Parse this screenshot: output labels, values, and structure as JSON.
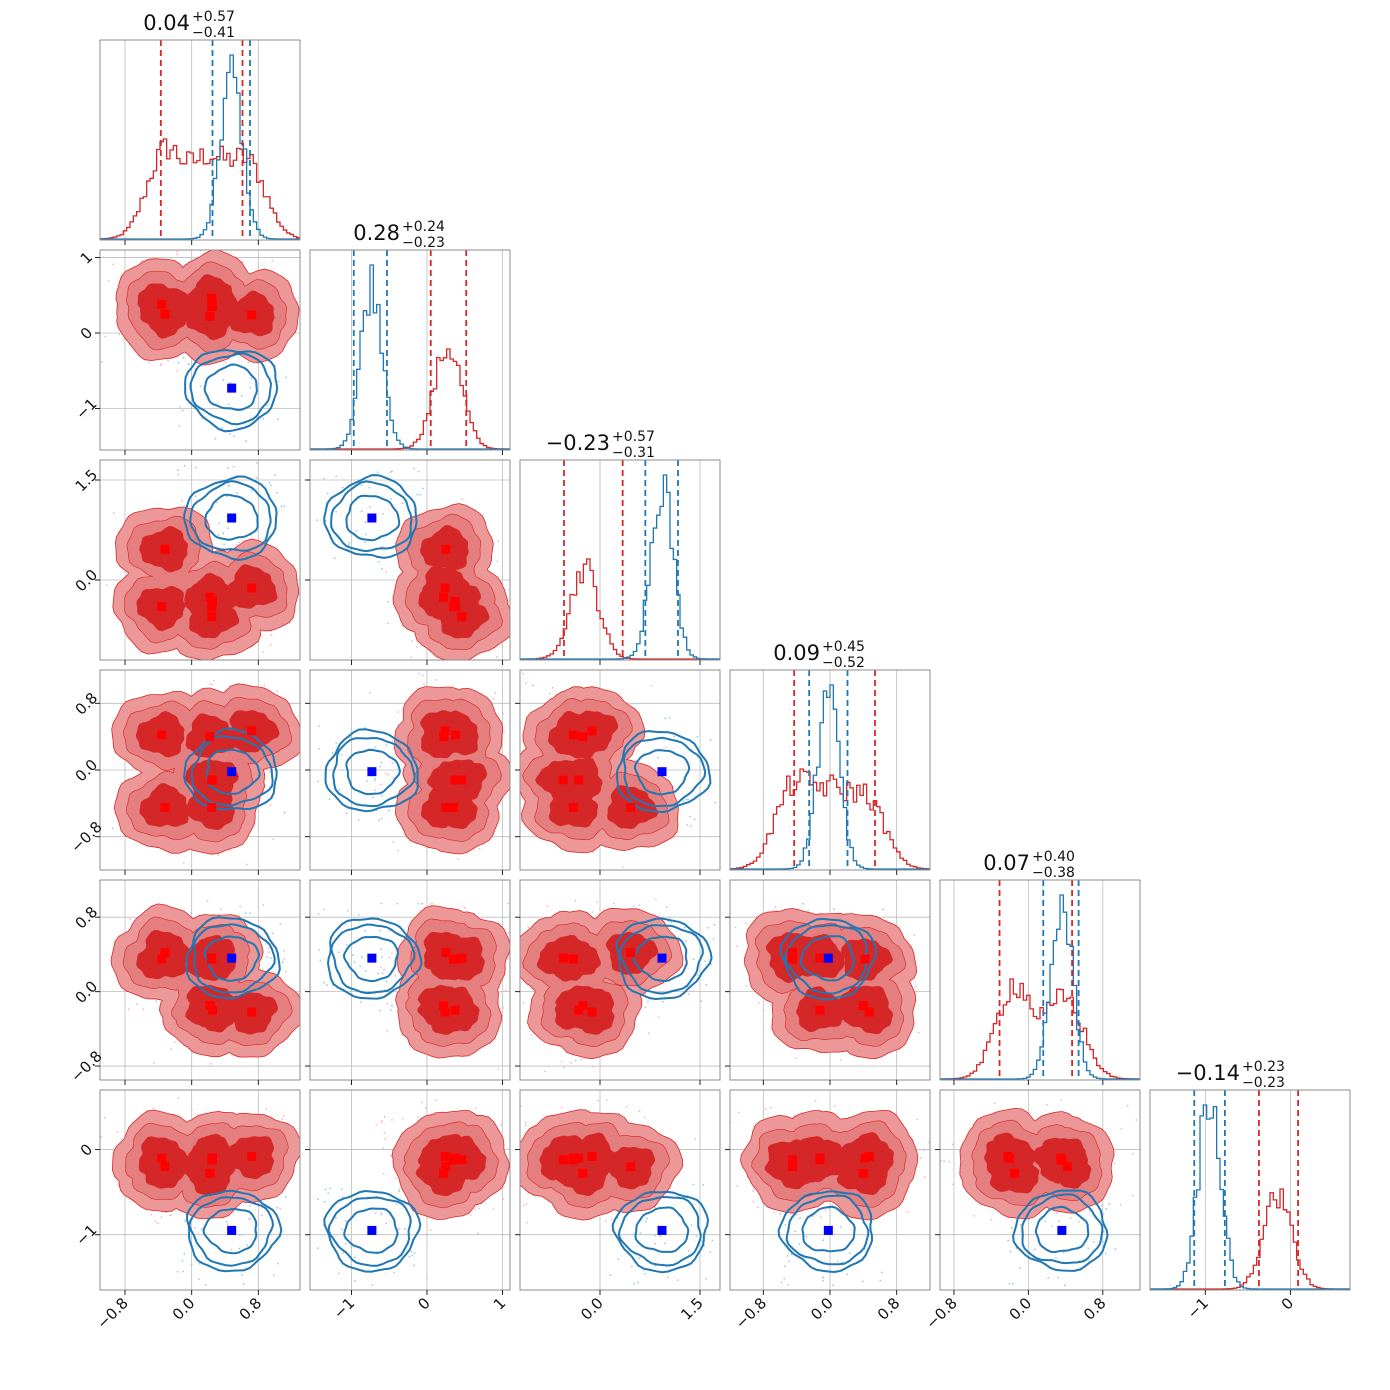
{
  "chart_data": {
    "type": "corner",
    "n_params": 6,
    "grid": true,
    "colors": {
      "red": "#d62728",
      "red_light": "#ec9898",
      "blue": "#1f77b4",
      "blue_marker": "#0000ff",
      "red_marker": "#ff0000"
    },
    "params": [
      {
        "range": [
          -1.1,
          1.3
        ],
        "ticks": [
          -0.8,
          0.0,
          0.8
        ],
        "tick_labels": [
          "−0.8",
          "0.0",
          "0.8"
        ],
        "title": {
          "median": "0.04",
          "plus": "+0.57",
          "minus": "−0.41"
        },
        "red_quantiles": [
          -0.37,
          0.61
        ],
        "blue_quantiles": [
          0.25,
          0.7
        ],
        "red_modes": [
          -0.32,
          0.2,
          0.68
        ],
        "blue_mode": 0.48
      },
      {
        "range": [
          -1.55,
          1.1
        ],
        "ticks": [
          -1,
          0,
          1
        ],
        "tick_labels": [
          "−1",
          "0",
          "1"
        ],
        "title": {
          "median": "0.28",
          "plus": "+0.24",
          "minus": "−0.23"
        },
        "red_quantiles": [
          0.05,
          0.52
        ],
        "blue_quantiles": [
          -0.97,
          -0.53
        ],
        "red_modes": [
          0.28
        ],
        "blue_mode": -0.73
      },
      {
        "range": [
          -1.2,
          1.8
        ],
        "ticks": [
          0.0,
          1.5
        ],
        "tick_labels": [
          "0.0",
          "1.5"
        ],
        "title": {
          "median": "−0.23",
          "plus": "+0.57",
          "minus": "−0.31"
        },
        "red_quantiles": [
          -0.54,
          0.34
        ],
        "blue_quantiles": [
          0.68,
          1.17
        ],
        "red_modes": [
          -0.23
        ],
        "blue_mode": 0.93
      },
      {
        "range": [
          -1.2,
          1.2
        ],
        "ticks": [
          -0.8,
          0.0,
          0.8
        ],
        "tick_labels": [
          "−0.8",
          "0.0",
          "0.8"
        ],
        "title": {
          "median": "0.09",
          "plus": "+0.45",
          "minus": "−0.52"
        },
        "red_quantiles": [
          -0.43,
          0.54
        ],
        "blue_quantiles": [
          -0.25,
          0.21
        ],
        "red_modes": [
          -0.45,
          0.0,
          0.45
        ],
        "blue_mode": -0.02
      },
      {
        "range": [
          -0.95,
          1.2
        ],
        "ticks": [
          -0.8,
          0.0,
          0.8
        ],
        "tick_labels": [
          "−0.8",
          "0.0",
          "0.8"
        ],
        "title": {
          "median": "0.07",
          "plus": "+0.40",
          "minus": "−0.38"
        },
        "red_quantiles": [
          -0.31,
          0.47
        ],
        "blue_quantiles": [
          0.16,
          0.54
        ],
        "red_modes": [
          -0.15,
          0.4
        ],
        "blue_mode": 0.36
      },
      {
        "range": [
          -1.65,
          0.7
        ],
        "ticks": [
          -1,
          0
        ],
        "tick_labels": [
          "−1",
          "0"
        ],
        "title": {
          "median": "−0.14",
          "plus": "+0.23",
          "minus": "−0.23"
        },
        "red_quantiles": [
          -0.37,
          0.09
        ],
        "blue_quantiles": [
          -1.13,
          -0.77
        ],
        "red_modes": [
          -0.15
        ],
        "blue_mode": -0.95
      }
    ],
    "red_marker_points": [
      [
        -0.36,
        0.38,
        -0.4,
        0.42,
        0.35,
        -0.1
      ],
      [
        -0.32,
        0.25,
        0.46,
        -0.45,
        0.42,
        -0.2
      ],
      [
        0.22,
        0.22,
        -0.26,
        0.4,
        -0.15,
        -0.28
      ],
      [
        0.72,
        0.24,
        -0.12,
        0.47,
        -0.22,
        -0.08
      ],
      [
        0.24,
        0.46,
        -0.55,
        -0.12,
        0.36,
        -0.12
      ],
      [
        0.25,
        0.37,
        -0.32,
        -0.12,
        -0.2,
        -0.1
      ],
      [
        0.24,
        0.35,
        -0.4,
        -0.45,
        0.35,
        -0.12
      ]
    ],
    "blue_marker_point": [
      0.48,
      -0.73,
      0.93,
      -0.02,
      0.36,
      -0.95
    ]
  }
}
